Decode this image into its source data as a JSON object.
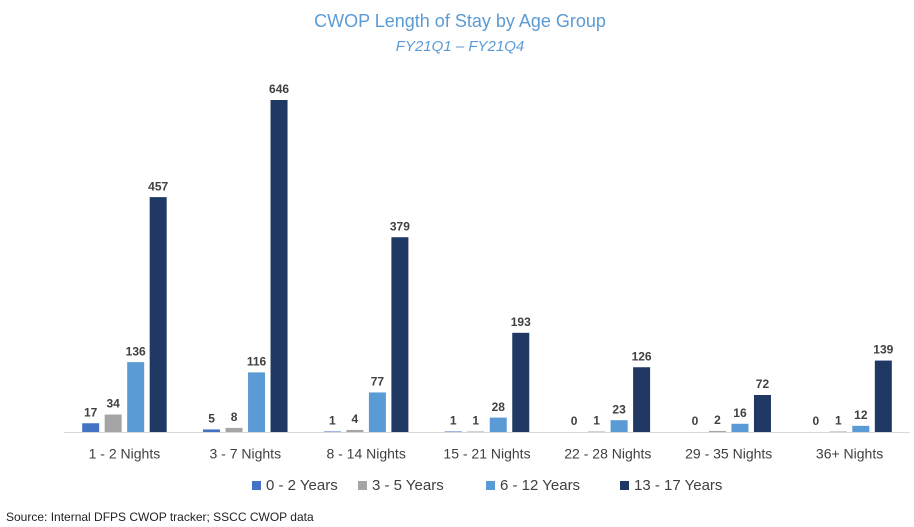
{
  "chart_data": {
    "type": "bar",
    "title": "CWOP Length of Stay by Age Group",
    "subtitle": "FY21Q1 – FY21Q4",
    "source": "Source: Internal DFPS CWOP tracker; SSCC CWOP data",
    "categories": [
      "1 - 2 Nights",
      "3 - 7 Nights",
      "8 - 14 Nights",
      "15 - 21 Nights",
      "22 - 28 Nights",
      "29 - 35 Nights",
      "36+ Nights"
    ],
    "series": [
      {
        "name": "0 - 2 Years",
        "color": "#4472c4",
        "values": [
          17,
          5,
          1,
          1,
          0,
          0,
          0
        ]
      },
      {
        "name": "3 - 5 Years",
        "color": "#a5a5a5",
        "values": [
          34,
          8,
          4,
          1,
          1,
          2,
          1
        ]
      },
      {
        "name": "6 - 12 Years",
        "color": "#5b9bd5",
        "values": [
          136,
          116,
          77,
          28,
          23,
          16,
          12
        ]
      },
      {
        "name": "13 - 17 Years",
        "color": "#203864",
        "values": [
          457,
          646,
          379,
          193,
          126,
          72,
          139
        ]
      }
    ],
    "legend": "bottom"
  }
}
